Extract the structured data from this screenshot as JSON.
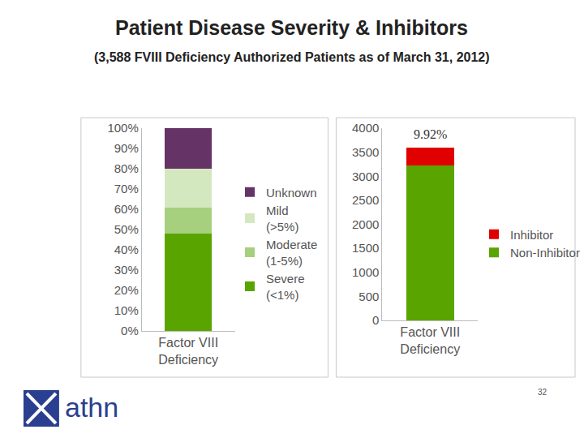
{
  "slide": {
    "title": "Patient Disease Severity & Inhibitors",
    "subtitle": "(3,588 FVIII Deficiency Authorized Patients as of March 31, 2012)",
    "page": "32",
    "logo": "athn"
  },
  "chart_data": [
    {
      "type": "bar",
      "stacked": true,
      "grid": false,
      "legend": "right",
      "categories": [
        "Factor VIII Deficiency"
      ],
      "series": [
        {
          "name": "Severe (<1%)",
          "color": "#5aa400",
          "values": [
            48
          ]
        },
        {
          "name": "Moderate (1-5%)",
          "color": "#a6cf7e",
          "values": [
            13
          ]
        },
        {
          "name": "Mild (>5%)",
          "color": "#d4e8c0",
          "values": [
            19
          ]
        },
        {
          "name": "Unknown",
          "color": "#663366",
          "values": [
            20
          ]
        }
      ],
      "ylim": [
        0,
        100
      ],
      "yticks": [
        {
          "value": 0,
          "label": "0%"
        },
        {
          "value": 10,
          "label": "10%"
        },
        {
          "value": 20,
          "label": "20%"
        },
        {
          "value": 30,
          "label": "30%"
        },
        {
          "value": 40,
          "label": "40%"
        },
        {
          "value": 50,
          "label": "50%"
        },
        {
          "value": 60,
          "label": "60%"
        },
        {
          "value": 70,
          "label": "70%"
        },
        {
          "value": 80,
          "label": "80%"
        },
        {
          "value": 90,
          "label": "90%"
        },
        {
          "value": 100,
          "label": "100%"
        }
      ]
    },
    {
      "type": "bar",
      "stacked": true,
      "grid": false,
      "legend": "right",
      "categories": [
        "Factor VIII Deficiency"
      ],
      "series": [
        {
          "name": "Non-Inhibitor",
          "color": "#5aa400",
          "values": [
            3232
          ]
        },
        {
          "name": "Inhibitor",
          "color": "#e00000",
          "values": [
            356
          ]
        }
      ],
      "ylim": [
        0,
        4000
      ],
      "yticks": [
        0,
        500,
        1000,
        1500,
        2000,
        2500,
        3000,
        3500,
        4000
      ],
      "annotations": [
        {
          "text": "9.92%",
          "category": "Factor VIII Deficiency"
        }
      ]
    }
  ]
}
